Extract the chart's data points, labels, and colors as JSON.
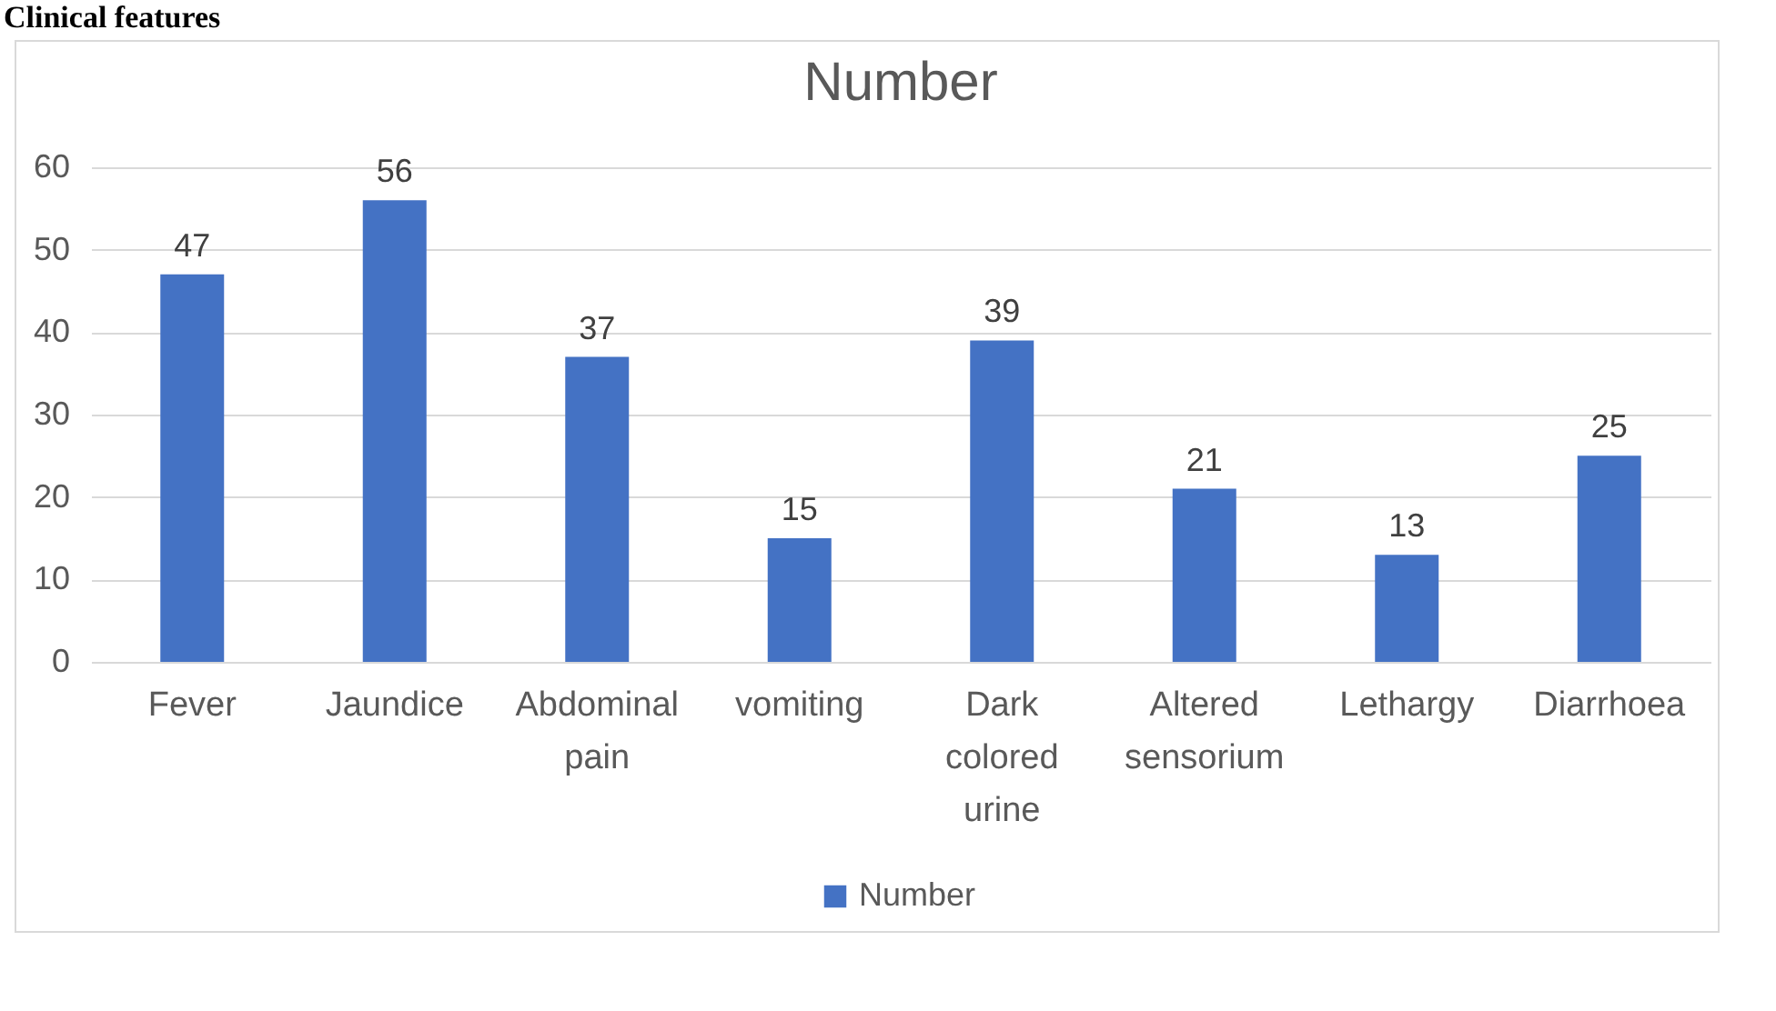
{
  "chart_data": {
    "type": "bar",
    "title": "Number",
    "annotations": [
      "Clinical features"
    ],
    "categories": [
      "Fever",
      "Jaundice",
      "Abdominal pain",
      "vomiting",
      "Dark colored urine",
      "Altered sensorium",
      "Lethargy",
      "Diarrhoea"
    ],
    "series": [
      {
        "name": "Number",
        "color": "#4472c4",
        "values": [
          47,
          56,
          37,
          15,
          39,
          21,
          13,
          25
        ]
      }
    ],
    "ylim": [
      0,
      60
    ],
    "yticks": [
      0,
      10,
      20,
      30,
      40,
      50,
      60
    ],
    "grid": "y",
    "legend": "bottom",
    "data_labels": true
  }
}
